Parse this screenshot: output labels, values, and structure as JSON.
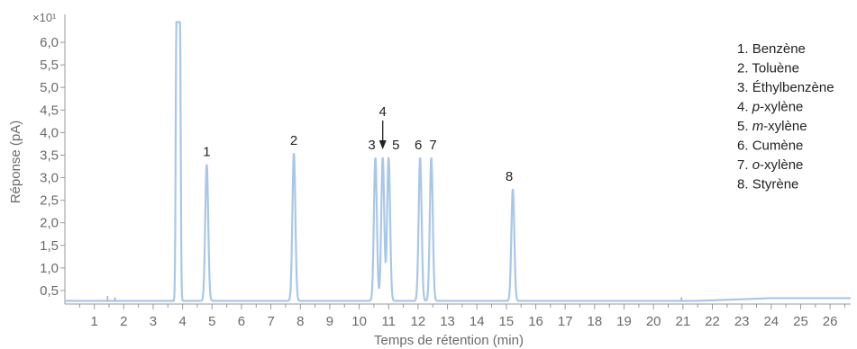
{
  "chart_data": {
    "type": "line",
    "title": "",
    "xlabel": "Temps de rétention (min)",
    "ylabel": "Réponse (pA)",
    "y_multiplier": "×10¹",
    "xlim": [
      0,
      26.7
    ],
    "ylim": [
      0.2,
      6.5
    ],
    "x_ticks": [
      "1",
      "2",
      "3",
      "4",
      "5",
      "6",
      "7",
      "8",
      "9",
      "10",
      "11",
      "12",
      "13",
      "14",
      "15",
      "16",
      "17",
      "18",
      "19",
      "20",
      "21",
      "22",
      "23",
      "24",
      "25",
      "26"
    ],
    "y_ticks": [
      "0,5",
      "1,0",
      "1,5",
      "2,0",
      "2,5",
      "3,0",
      "3,5",
      "4,0",
      "4,5",
      "5,0",
      "5,5",
      "6,0"
    ],
    "baseline": 0.27,
    "line_color": "#a9c7e8",
    "series": [
      {
        "peaks": [
          {
            "rt": 3.85,
            "height": 6.45,
            "width": 0.09,
            "label": ""
          },
          {
            "rt": 4.82,
            "height": 3.3,
            "width": 0.05,
            "label": "1"
          },
          {
            "rt": 7.78,
            "height": 3.55,
            "width": 0.05,
            "label": "2"
          },
          {
            "rt": 10.55,
            "height": 3.45,
            "width": 0.05,
            "label": "3"
          },
          {
            "rt": 10.8,
            "height": 3.45,
            "width": 0.05,
            "label": "4"
          },
          {
            "rt": 11.0,
            "height": 3.45,
            "width": 0.05,
            "label": "5"
          },
          {
            "rt": 12.07,
            "height": 3.45,
            "width": 0.05,
            "label": "6"
          },
          {
            "rt": 12.45,
            "height": 3.45,
            "width": 0.05,
            "label": "7"
          },
          {
            "rt": 15.22,
            "height": 2.75,
            "width": 0.05,
            "label": "8"
          }
        ]
      }
    ],
    "legend": {
      "position": "top-right",
      "entries": [
        {
          "num": "1.",
          "pre": "",
          "ital": "",
          "post": "Benzène"
        },
        {
          "num": "2.",
          "pre": "",
          "ital": "",
          "post": "Toluène"
        },
        {
          "num": "3.",
          "pre": "",
          "ital": "",
          "post": "Éthylbenzène"
        },
        {
          "num": "4.",
          "pre": "",
          "ital": "p",
          "post": "-xylène"
        },
        {
          "num": "5.",
          "pre": "",
          "ital": "m",
          "post": "-xylène"
        },
        {
          "num": "6.",
          "pre": "",
          "ital": "",
          "post": "Cumène"
        },
        {
          "num": "7.",
          "pre": "",
          "ital": "o",
          "post": "-xylène"
        },
        {
          "num": "8.",
          "pre": "",
          "ital": "",
          "post": "Styrène"
        }
      ]
    }
  }
}
